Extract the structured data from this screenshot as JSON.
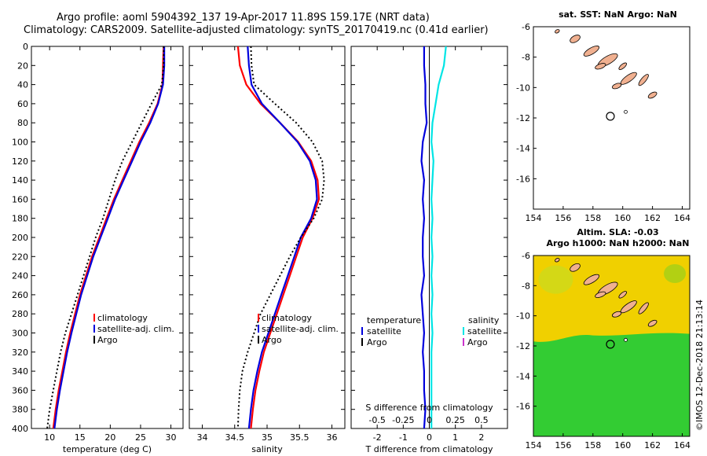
{
  "title_line1": "Argo profile: aoml 5904392_137 19-Apr-2017 11.89S 159.17E (NRT data)",
  "title_line2": "Climatology: CARS2009. Satellite-adjusted climatology: synTS_20170419.nc (0.41d earlier)",
  "colors": {
    "climatology": "#ff0000",
    "satellite": "#0000dd",
    "argo": "#000000",
    "sat_salinity": "#00e5e5",
    "argo_salinity": "#cc33cc",
    "land": "#f0b090",
    "sea_warm": "#f0d000",
    "sea_cool": "#33cc33"
  },
  "chart_data": [
    {
      "type": "line",
      "id": "temperature",
      "xlabel": "temperature (deg C)",
      "ylabel": "",
      "xlim": [
        7,
        32
      ],
      "ylim": [
        400,
        0
      ],
      "xticks": [
        10,
        15,
        20,
        25,
        30
      ],
      "yticks": [
        0,
        20,
        40,
        60,
        80,
        100,
        120,
        140,
        160,
        180,
        200,
        220,
        240,
        260,
        280,
        300,
        320,
        340,
        360,
        380,
        400
      ],
      "legend": [
        "climatology",
        "satellite-adj. clim.",
        "Argo"
      ],
      "depth": [
        0,
        20,
        40,
        60,
        80,
        100,
        120,
        140,
        160,
        180,
        200,
        220,
        240,
        260,
        280,
        300,
        320,
        340,
        360,
        380,
        400
      ],
      "series": [
        {
          "name": "climatology",
          "values": [
            28.8,
            28.7,
            28.6,
            27.8,
            26.4,
            24.8,
            23.4,
            22.0,
            20.6,
            19.4,
            18.2,
            17.0,
            16.0,
            15.0,
            14.2,
            13.4,
            12.7,
            12.1,
            11.5,
            11.0,
            10.6
          ]
        },
        {
          "name": "satellite-adj. clim.",
          "values": [
            28.9,
            28.9,
            28.7,
            27.9,
            26.6,
            25.0,
            23.6,
            22.2,
            20.8,
            19.6,
            18.4,
            17.2,
            16.2,
            15.2,
            14.4,
            13.6,
            12.9,
            12.3,
            11.7,
            11.2,
            10.8
          ]
        },
        {
          "name": "Argo",
          "values": [
            28.8,
            28.8,
            28.5,
            26.8,
            25.2,
            23.6,
            22.0,
            20.8,
            19.8,
            18.8,
            17.6,
            16.6,
            15.6,
            14.6,
            13.6,
            12.6,
            11.8,
            11.2,
            10.6,
            10.0,
            9.6
          ]
        }
      ]
    },
    {
      "type": "line",
      "id": "salinity",
      "xlabel": "salinity",
      "ylabel": "",
      "xlim": [
        33.8,
        36.2
      ],
      "ylim": [
        400,
        0
      ],
      "xticks": [
        34,
        34.5,
        35,
        35.5,
        36
      ],
      "legend": [
        "climatology",
        "satellite-adj. clim.",
        "Argo"
      ],
      "depth": [
        0,
        20,
        40,
        60,
        80,
        100,
        120,
        140,
        160,
        180,
        200,
        220,
        240,
        260,
        280,
        300,
        320,
        340,
        360,
        380,
        400
      ],
      "series": [
        {
          "name": "climatology",
          "values": [
            34.55,
            34.58,
            34.68,
            34.9,
            35.2,
            35.48,
            35.68,
            35.78,
            35.8,
            35.7,
            35.55,
            35.45,
            35.35,
            35.25,
            35.15,
            35.05,
            34.95,
            34.88,
            34.82,
            34.78,
            34.75
          ]
        },
        {
          "name": "satellite-adj. clim.",
          "values": [
            34.7,
            34.72,
            34.76,
            34.92,
            35.2,
            35.47,
            35.66,
            35.75,
            35.77,
            35.68,
            35.52,
            35.42,
            35.32,
            35.22,
            35.12,
            35.02,
            34.92,
            34.85,
            34.79,
            34.75,
            34.72
          ]
        },
        {
          "name": "Argo",
          "values": [
            34.75,
            34.76,
            34.8,
            35.12,
            35.45,
            35.7,
            35.85,
            35.88,
            35.85,
            35.72,
            35.52,
            35.35,
            35.2,
            35.05,
            34.9,
            34.8,
            34.7,
            34.62,
            34.58,
            34.56,
            34.55
          ]
        }
      ]
    },
    {
      "type": "line",
      "id": "difference",
      "xlabel": "T difference from climatology",
      "top_xlabel": "S difference from climatology",
      "xlim": [
        -3,
        3
      ],
      "ylim": [
        400,
        0
      ],
      "xticks": [
        -2,
        -1,
        0,
        1,
        2
      ],
      "top_xticks": [
        "-0.5",
        "-0.25",
        "0",
        "0.25",
        "0.5"
      ],
      "top_xtick_values": [
        -0.5,
        -0.25,
        0,
        0.25,
        0.5
      ],
      "top_xlim": [
        -0.75,
        0.75
      ],
      "legend_temperature_heading": "temperature",
      "legend_salinity_heading": "salinity",
      "legend_temperature": [
        "satellite",
        "Argo"
      ],
      "legend_salinity": [
        "satellite",
        "Argo"
      ],
      "depth": [
        0,
        20,
        40,
        60,
        80,
        100,
        120,
        140,
        160,
        180,
        200,
        220,
        240,
        260,
        280,
        300,
        320,
        340,
        360,
        380,
        400
      ],
      "series": [
        {
          "name": "T satellite",
          "values": [
            -0.2,
            -0.2,
            -0.15,
            -0.15,
            -0.1,
            -0.25,
            -0.3,
            -0.2,
            -0.25,
            -0.2,
            -0.25,
            -0.25,
            -0.2,
            -0.3,
            -0.25,
            -0.2,
            -0.25,
            -0.2,
            -0.2,
            -0.15,
            -0.2
          ]
        },
        {
          "name": "S satellite",
          "values": [
            0.16,
            0.14,
            0.09,
            0.06,
            0.03,
            0.02,
            0.04,
            0.03,
            0.02,
            0.03,
            0.02,
            0.03,
            0.02,
            0.03,
            0.02,
            0.03,
            0.02,
            0.02,
            0.02,
            0.02,
            0.02
          ]
        }
      ]
    },
    {
      "type": "map",
      "id": "sst_map",
      "title": "sat. SST: NaN Argo: NaN",
      "xlim": [
        154,
        164.5
      ],
      "ylim": [
        -18,
        -6
      ],
      "xticks": [
        154,
        156,
        158,
        160,
        162,
        164
      ],
      "yticks": [
        -6,
        -8,
        -10,
        -12,
        -14,
        -16
      ],
      "argo_position": {
        "lon": 159.17,
        "lat": -11.89
      }
    },
    {
      "type": "map",
      "id": "sla_map",
      "title_line1": "Altim. SLA: -0.03",
      "title_line2": "Argo h1000: NaN h2000: NaN",
      "xlim": [
        154,
        164.5
      ],
      "ylim": [
        -18,
        -6
      ],
      "xticks": [
        154,
        156,
        158,
        160,
        162,
        164
      ],
      "yticks": [
        -6,
        -8,
        -10,
        -12,
        -14,
        -16
      ],
      "argo_position": {
        "lon": 159.17,
        "lat": -11.89
      }
    }
  ],
  "credit": "©IMOS 12-Dec-2018 21:13:14"
}
